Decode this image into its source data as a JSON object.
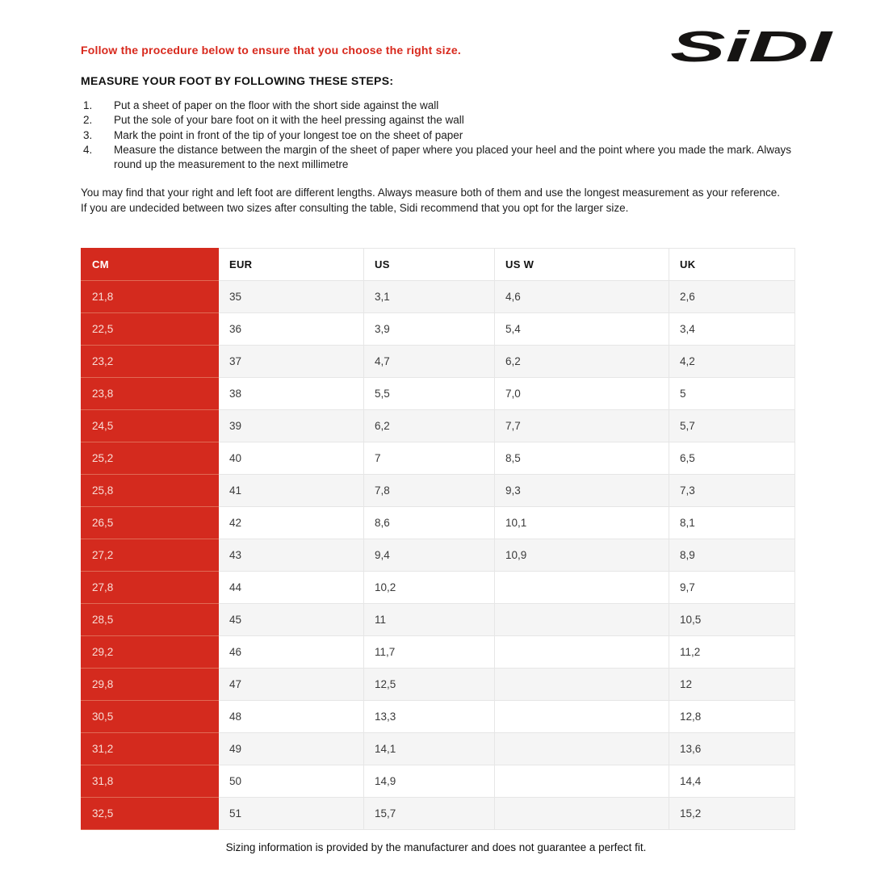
{
  "page": {
    "procedure_note": "Follow the procedure below to ensure that you choose the right size.",
    "logo_text": "SiDI",
    "heading": "MEASURE YOUR FOOT BY FOLLOWING THESE STEPS:",
    "steps": [
      {
        "num": "1.",
        "text": "Put a sheet of paper on the floor with the short side against the wall"
      },
      {
        "num": "2.",
        "text": "Put the sole of your bare foot on it with the heel pressing against the wall"
      },
      {
        "num": "3.",
        "text": "Mark the point in front of the tip of your longest toe on the sheet of paper"
      },
      {
        "num": "4.",
        "text": "Measure the distance between the margin of the sheet of paper where you placed your heel and the point where you made the mark. Always round up the measurement to the next millimetre"
      }
    ],
    "paragraphs": [
      "You may find that your right and left foot are different lengths. Always measure both of them and use the longest measurement as your reference.",
      "If you are undecided between two sizes after consulting the table, Sidi recommend that you opt for the larger size."
    ],
    "footer": "Sizing information is provided by the manufacturer and does not guarantee a perfect fit."
  },
  "table": {
    "columns": [
      "CM",
      "EUR",
      "US",
      "US W",
      "UK"
    ],
    "rows": [
      [
        "21,8",
        "35",
        "3,1",
        "4,6",
        "2,6"
      ],
      [
        "22,5",
        "36",
        "3,9",
        "5,4",
        "3,4"
      ],
      [
        "23,2",
        "37",
        "4,7",
        "6,2",
        "4,2"
      ],
      [
        "23,8",
        "38",
        "5,5",
        "7,0",
        "5"
      ],
      [
        "24,5",
        "39",
        "6,2",
        "7,7",
        "5,7"
      ],
      [
        "25,2",
        "40",
        "7",
        "8,5",
        "6,5"
      ],
      [
        "25,8",
        "41",
        "7,8",
        "9,3",
        "7,3"
      ],
      [
        "26,5",
        "42",
        "8,6",
        "10,1",
        "8,1"
      ],
      [
        "27,2",
        "43",
        "9,4",
        "10,9",
        "8,9"
      ],
      [
        "27,8",
        "44",
        "10,2",
        "",
        "9,7"
      ],
      [
        "28,5",
        "45",
        "11",
        "",
        "10,5"
      ],
      [
        "29,2",
        "46",
        "11,7",
        "",
        "11,2"
      ],
      [
        "29,8",
        "47",
        "12,5",
        "",
        "12"
      ],
      [
        "30,5",
        "48",
        "13,3",
        "",
        "12,8"
      ],
      [
        "31,2",
        "49",
        "14,1",
        "",
        "13,6"
      ],
      [
        "31,8",
        "50",
        "14,9",
        "",
        "14,4"
      ],
      [
        "32,5",
        "51",
        "15,7",
        "",
        "15,2"
      ]
    ]
  },
  "colors": {
    "accent_red": "#d42a1e",
    "heading_red": "#d8291d",
    "row_alt_gray": "#f5f5f5",
    "cell_border": "#e6e6e6",
    "red_cell_text": "#f8ddd6"
  }
}
